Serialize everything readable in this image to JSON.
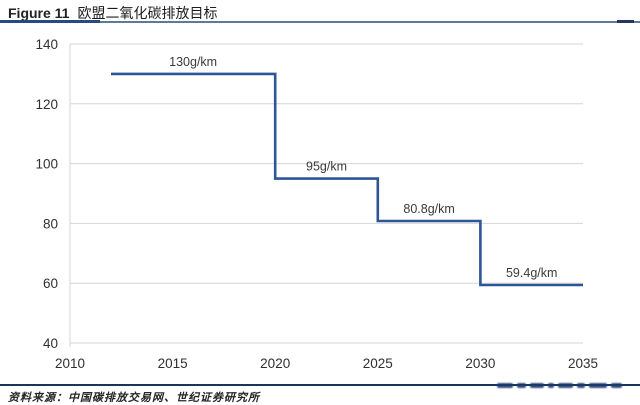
{
  "header": {
    "figure_label": "Figure 11",
    "title": "欧盟二氧化碳排放目标"
  },
  "footer": {
    "source": "资料来源：中国碳排放交易网、世纪证券研究所"
  },
  "colors": {
    "line": "#2E5597",
    "grid": "#d6d6d6",
    "axis_text": "#303030",
    "label_text": "#3a3a3a",
    "separator": "#17365d"
  },
  "chart_data": {
    "type": "line",
    "subtype": "step",
    "title": "欧盟二氧化碳排放目标",
    "xlabel": "",
    "ylabel": "",
    "unit": "g/km",
    "xlim": [
      2010,
      2035
    ],
    "ylim": [
      40,
      140
    ],
    "x_ticks": [
      "2010",
      "2015",
      "2020",
      "2025",
      "2030",
      "2035"
    ],
    "y_ticks": [
      "40",
      "60",
      "80",
      "100",
      "120",
      "140"
    ],
    "grid": true,
    "legend": false,
    "steps": [
      {
        "x_start": 2012,
        "x_end": 2020,
        "value": 130,
        "label": "130g/km"
      },
      {
        "x_start": 2020,
        "x_end": 2025,
        "value": 95,
        "label": "95g/km"
      },
      {
        "x_start": 2025,
        "x_end": 2030,
        "value": 80.8,
        "label": "80.8g/km"
      },
      {
        "x_start": 2030,
        "x_end": 2035,
        "value": 59.4,
        "label": "59.4g/km"
      }
    ]
  }
}
